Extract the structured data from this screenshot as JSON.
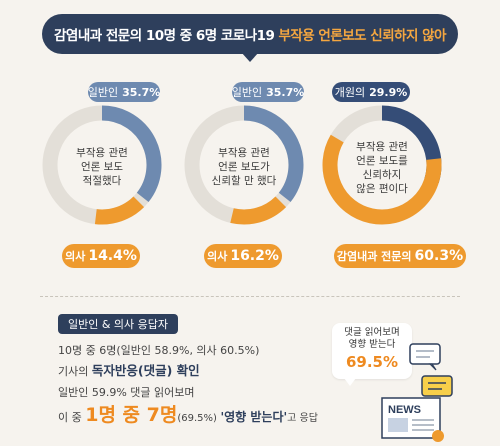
{
  "title": {
    "part1": "감염내과 전문의 10명 중 6명 코로나19",
    "part2": "부작용 언론보도 신뢰하지 않아"
  },
  "colors": {
    "navy": "#2e3f5c",
    "blue_light": "#6e8ab0",
    "blue_dark": "#354d77",
    "orange": "#ee9a2e",
    "track": "#e3dfd8"
  },
  "chart_data": [
    {
      "type": "pie",
      "center_label": "부작용 관련\n언론 보도\n적절했다",
      "series": [
        {
          "name": "일반인",
          "value": 35.7,
          "color": "#6e8ab0"
        },
        {
          "name": "의사",
          "value": 14.4,
          "color": "#ee9a2e"
        }
      ]
    },
    {
      "type": "pie",
      "center_label": "부작용 관련\n언론 보도가\n신뢰할 만 했다",
      "series": [
        {
          "name": "일반인",
          "value": 35.7,
          "color": "#6e8ab0"
        },
        {
          "name": "의사",
          "value": 16.2,
          "color": "#ee9a2e"
        }
      ]
    },
    {
      "type": "pie",
      "center_label": "부작용 관련\n언론 보도를\n신뢰하지\n않은 편이다",
      "series": [
        {
          "name": "개원의",
          "value": 29.9,
          "color": "#354d77"
        },
        {
          "name": "감염내과 전문의",
          "value": 60.3,
          "color": "#ee9a2e"
        }
      ]
    }
  ],
  "pills": [
    {
      "top_name": "일반인",
      "top_value": "35.7%",
      "bot_name": "의사",
      "bot_value": "14.4%"
    },
    {
      "top_name": "일반인",
      "top_value": "35.7%",
      "bot_name": "의사",
      "bot_value": "16.2%"
    },
    {
      "top_name": "개원의",
      "top_value": "29.9%",
      "bot_name": "감염내과 전문의",
      "bot_value": "60.3%"
    }
  ],
  "survey": {
    "label": "일반인 & 의사 응답자",
    "line1": "10명 중 6명(일반인 58.9%, 의사 60.5%)",
    "line2_pre": "기사의 ",
    "line2_bold": "독자반응(댓글) 확인",
    "line3": "일반인 59.9% 댓글 읽어보며",
    "line4_pre": "이 중 ",
    "line4_big": "1명 중 7명",
    "line4_pct": "(69.5%)",
    "line4_quote": "'영향 받는다'",
    "line4_post": "고 응답"
  },
  "bubble": {
    "text": "댓글 읽어보며\n영향 받는다",
    "value": "69.5%"
  },
  "news": {
    "label": "NEWS"
  }
}
